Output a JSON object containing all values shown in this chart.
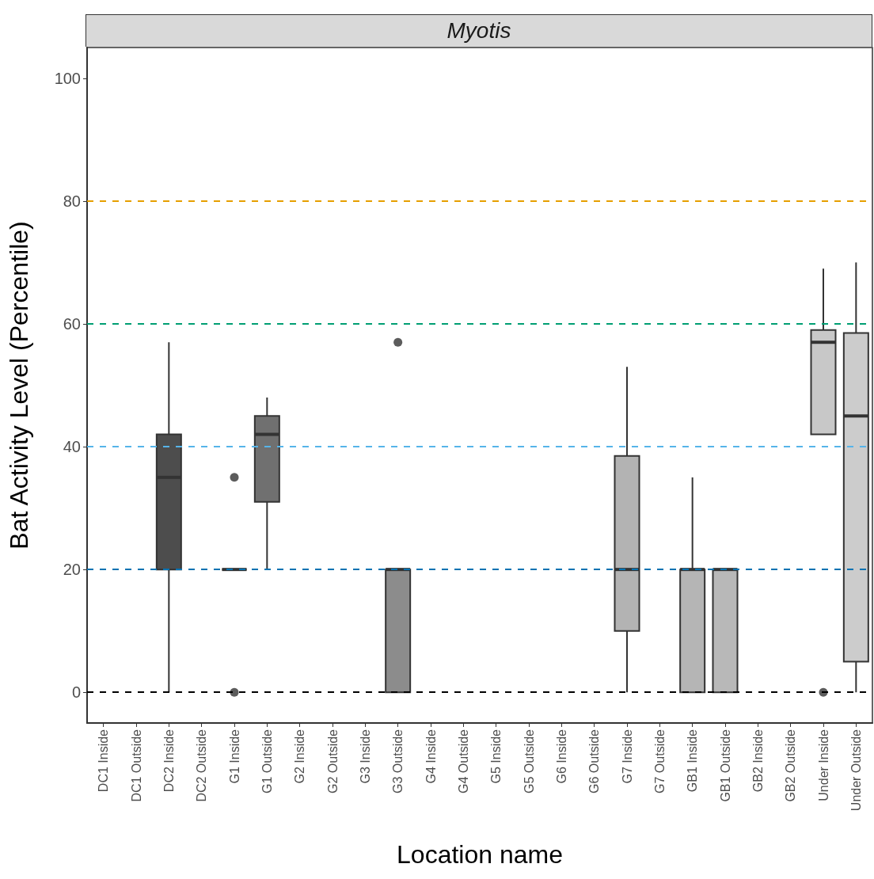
{
  "chart_data": {
    "type": "box",
    "title": "Myotis",
    "xlabel": "Location name",
    "ylabel": "Bat Activity Level (Percentile)",
    "categories": [
      "DC1 Inside",
      "DC1 Outside",
      "DC2 Inside",
      "DC2 Outside",
      "G1 Inside",
      "G1 Outside",
      "G2 Inside",
      "G2 Outside",
      "G3 Inside",
      "G3 Outside",
      "G4 Inside",
      "G4 Outside",
      "G5 Inside",
      "G5 Outside",
      "G6 Inside",
      "G6 Outside",
      "G7 Inside",
      "G7 Outside",
      "GB1 Inside",
      "GB1 Outside",
      "GB2 Inside",
      "GB2 Outside",
      "Under Inside",
      "Under Outside"
    ],
    "boxes": [
      null,
      null,
      {
        "low": 0,
        "q1": 20,
        "median": 35,
        "q3": 42,
        "high": 57
      },
      null,
      {
        "low": 20,
        "q1": 20,
        "median": 20,
        "q3": 20,
        "high": 20,
        "outliers": [
          35,
          0
        ]
      },
      {
        "low": 20,
        "q1": 31,
        "median": 42,
        "q3": 45,
        "high": 48
      },
      null,
      null,
      null,
      {
        "low": 0,
        "q1": 0,
        "median": 20,
        "q3": 20,
        "high": 20,
        "outliers": [
          57
        ]
      },
      null,
      null,
      null,
      null,
      null,
      null,
      {
        "low": 0,
        "q1": 10,
        "median": 20,
        "q3": 38.5,
        "high": 53
      },
      null,
      {
        "low": 0,
        "q1": 0,
        "median": 20,
        "q3": 20,
        "high": 35
      },
      {
        "low": 0,
        "q1": 0,
        "median": 20,
        "q3": 20,
        "high": 20
      },
      null,
      null,
      {
        "low": 42,
        "q1": 42,
        "median": 57,
        "q3": 59,
        "high": 69,
        "outliers": [
          0
        ]
      },
      {
        "low": 0,
        "q1": 5,
        "median": 45,
        "q3": 58.5,
        "high": 70
      }
    ],
    "colors": [
      null,
      null,
      "#4d4d4d",
      null,
      null,
      "#707070",
      null,
      null,
      null,
      "#8c8c8c",
      null,
      null,
      null,
      null,
      null,
      null,
      "#b3b3b3",
      null,
      "#b5b5b5",
      "#b8b8b8",
      null,
      null,
      "#c8c8c8",
      "#cccccc"
    ],
    "ylim": [
      -5,
      105
    ],
    "yticks": [
      0,
      20,
      40,
      60,
      80,
      100
    ],
    "grid": false,
    "ref_lines": [
      {
        "axis": "y",
        "value": 0,
        "color": "#000000",
        "line_style": "dashed"
      },
      {
        "axis": "y",
        "value": 20,
        "color": "#0072b2",
        "line_style": "dashed"
      },
      {
        "axis": "y",
        "value": 40,
        "color": "#56b4e9",
        "line_style": "dashed"
      },
      {
        "axis": "y",
        "value": 60,
        "color": "#009e73",
        "line_style": "dashed"
      },
      {
        "axis": "y",
        "value": 80,
        "color": "#e69f00",
        "line_style": "dashed"
      }
    ]
  }
}
